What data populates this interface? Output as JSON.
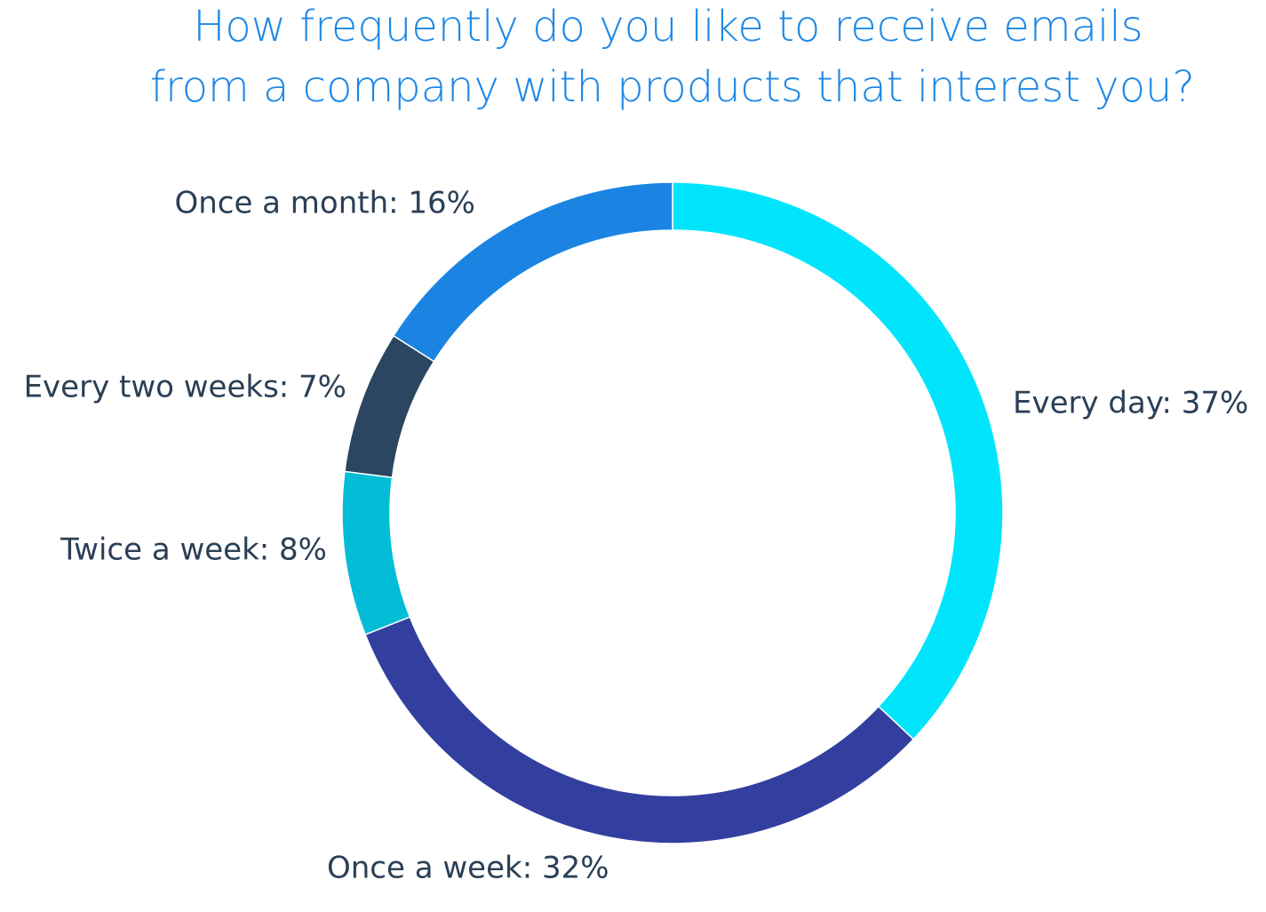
{
  "chart_data": {
    "type": "pie",
    "title": [
      "How frequently do you like to receive emails",
      "from a company with products that interest you?"
    ],
    "values": [
      37,
      32,
      8,
      7,
      16
    ],
    "value_labels": [
      "Every day: 37%",
      "Once a week: 32%",
      "Twice a week: 8%",
      "Every two weeks: 7%",
      "Once a month: 16%"
    ],
    "colors": [
      "#00e5fc",
      "#333f9f",
      "#03bcd6",
      "#2a4660",
      "#1b84e2"
    ]
  }
}
